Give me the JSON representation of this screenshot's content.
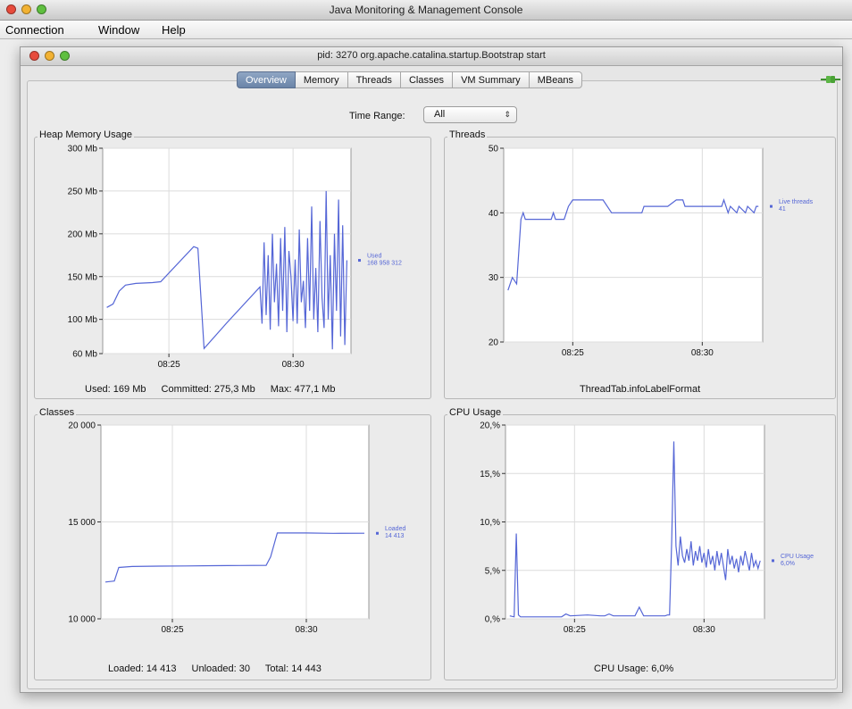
{
  "app": {
    "window_title": "Java Monitoring & Management Console",
    "menu": [
      "Connection",
      "Window",
      "Help"
    ],
    "inner_title": "pid: 3270 org.apache.catalina.startup.Bootstrap start"
  },
  "tabs": [
    "Overview",
    "Memory",
    "Threads",
    "Classes",
    "VM Summary",
    "MBeans"
  ],
  "active_tab": "Overview",
  "time_range": {
    "label": "Time Range:",
    "value": "All"
  },
  "colors": {
    "series": "#5566d6",
    "grid": "#dcdcdc",
    "plot_bg": "#ffffff"
  },
  "icons": {
    "connection": "connected-plug-icon",
    "range_selector": "up-down-arrows-icon"
  },
  "charts": {
    "heap": {
      "title": "Heap Memory Usage",
      "footer": {
        "used": "Used: 169 Mb",
        "committed": "Committed: 275,3 Mb",
        "max": "Max: 477,1 Mb"
      }
    },
    "threads": {
      "title": "Threads",
      "footer": "ThreadTab.infoLabelFormat"
    },
    "classes": {
      "title": "Classes",
      "footer": {
        "loaded": "Loaded: 14 413",
        "unloaded": "Unloaded: 30",
        "total": "Total: 14 443"
      }
    },
    "cpu": {
      "title": "CPU Usage",
      "footer": "CPU Usage: 6,0%"
    }
  },
  "chart_data": [
    {
      "type": "line",
      "title": "Heap Memory Usage",
      "x_ticks": [
        "08:25",
        "08:30"
      ],
      "y_ticks": [
        "300 Mb",
        "250 Mb",
        "200 Mb",
        "150 Mb",
        "100 Mb",
        "60 Mb"
      ],
      "ylim": [
        60,
        300
      ],
      "grid": true,
      "series": [
        {
          "legend_line1": "Used",
          "legend_line2": "168 958 312",
          "x": [
            "08:22:30",
            "08:22:45",
            "08:23:00",
            "08:23:15",
            "08:23:40",
            "08:24:20",
            "08:24:40",
            "08:26:00",
            "08:26:10",
            "08:26:25",
            "08:27:20",
            "08:28:40",
            "08:28:45",
            "08:28:50",
            "08:28:55",
            "08:29:00",
            "08:29:05",
            "08:29:10",
            "08:29:15",
            "08:29:20",
            "08:29:25",
            "08:29:30",
            "08:29:35",
            "08:29:40",
            "08:29:45",
            "08:29:50",
            "08:29:55",
            "08:30:00",
            "08:30:05",
            "08:30:10",
            "08:30:15",
            "08:30:20",
            "08:30:25",
            "08:30:30",
            "08:30:35",
            "08:30:40",
            "08:30:45",
            "08:30:50",
            "08:30:55",
            "08:31:00",
            "08:31:05",
            "08:31:10",
            "08:31:15",
            "08:31:20",
            "08:31:25",
            "08:31:30",
            "08:31:35",
            "08:31:40",
            "08:31:45",
            "08:31:50",
            "08:31:55",
            "08:32:00",
            "08:32:05",
            "08:32:10"
          ],
          "values": [
            114,
            118,
            133,
            140,
            142,
            143,
            144,
            185,
            183,
            66,
            96,
            138,
            95,
            190,
            105,
            175,
            88,
            200,
            120,
            165,
            92,
            195,
            110,
            208,
            85,
            180,
            150,
            98,
            170,
            95,
            205,
            120,
            145,
            90,
            195,
            110,
            232,
            100,
            160,
            85,
            215,
            125,
            90,
            250,
            100,
            175,
            65,
            200,
            110,
            240,
            80,
            210,
            70,
            169
          ]
        }
      ]
    },
    {
      "type": "line",
      "title": "Threads",
      "x_ticks": [
        "08:25",
        "08:30"
      ],
      "y_ticks": [
        "50",
        "40",
        "30",
        "20"
      ],
      "ylim": [
        20,
        50
      ],
      "grid": true,
      "series": [
        {
          "legend_line1": "Live threads",
          "legend_line2": "41",
          "x": [
            "08:22:30",
            "08:22:40",
            "08:22:50",
            "08:23:00",
            "08:23:05",
            "08:23:10",
            "08:23:20",
            "08:24:10",
            "08:24:15",
            "08:24:20",
            "08:24:40",
            "08:24:50",
            "08:25:00",
            "08:26:10",
            "08:26:30",
            "08:27:40",
            "08:27:45",
            "08:28:40",
            "08:29:00",
            "08:29:15",
            "08:29:20",
            "08:30:45",
            "08:30:50",
            "08:31:00",
            "08:31:05",
            "08:31:20",
            "08:31:25",
            "08:31:40",
            "08:31:45",
            "08:32:00",
            "08:32:05",
            "08:32:10"
          ],
          "values": [
            28,
            30,
            29,
            39,
            40,
            39,
            39,
            39,
            40,
            39,
            39,
            41,
            42,
            42,
            40,
            40,
            41,
            41,
            42,
            42,
            41,
            41,
            42,
            40,
            41,
            40,
            41,
            40,
            41,
            40,
            41,
            41
          ]
        }
      ]
    },
    {
      "type": "line",
      "title": "Classes",
      "x_ticks": [
        "08:25",
        "08:30"
      ],
      "y_ticks": [
        "20 000",
        "15 000",
        "10 000"
      ],
      "ylim": [
        10000,
        20000
      ],
      "grid": true,
      "series": [
        {
          "legend_line1": "Loaded",
          "legend_line2": "14 413",
          "x": [
            "08:22:30",
            "08:22:50",
            "08:23:00",
            "08:23:30",
            "08:24:30",
            "08:25:30",
            "08:26:30",
            "08:27:30",
            "08:28:30",
            "08:28:40",
            "08:28:55",
            "08:29:20",
            "08:30:00",
            "08:31:00",
            "08:32:10"
          ],
          "values": [
            11900,
            11950,
            12650,
            12700,
            12720,
            12730,
            12740,
            12750,
            12760,
            13200,
            14430,
            14430,
            14430,
            14410,
            14413
          ]
        }
      ]
    },
    {
      "type": "line",
      "title": "CPU Usage",
      "x_ticks": [
        "08:25",
        "08:30"
      ],
      "y_ticks": [
        "20,%",
        "15,%",
        "10,%",
        "5,%",
        "0,%"
      ],
      "ylim": [
        0,
        20
      ],
      "grid": true,
      "series": [
        {
          "legend_line1": "CPU Usage",
          "legend_line2": "6,0%",
          "x": [
            "08:22:30",
            "08:22:40",
            "08:22:45",
            "08:22:50",
            "08:22:55",
            "08:23:30",
            "08:24:30",
            "08:24:40",
            "08:24:50",
            "08:25:30",
            "08:26:00",
            "08:26:10",
            "08:26:20",
            "08:26:30",
            "08:26:40",
            "08:27:20",
            "08:27:30",
            "08:27:40",
            "08:28:30",
            "08:28:35",
            "08:28:40",
            "08:28:45",
            "08:28:50",
            "08:28:55",
            "08:29:00",
            "08:29:05",
            "08:29:10",
            "08:29:15",
            "08:29:20",
            "08:29:25",
            "08:29:30",
            "08:29:35",
            "08:29:40",
            "08:29:45",
            "08:29:50",
            "08:29:55",
            "08:30:00",
            "08:30:05",
            "08:30:10",
            "08:30:15",
            "08:30:20",
            "08:30:25",
            "08:30:30",
            "08:30:35",
            "08:30:40",
            "08:30:45",
            "08:30:50",
            "08:30:55",
            "08:31:00",
            "08:31:05",
            "08:31:10",
            "08:31:15",
            "08:31:20",
            "08:31:25",
            "08:31:30",
            "08:31:35",
            "08:31:40",
            "08:31:45",
            "08:31:50",
            "08:31:55",
            "08:32:00",
            "08:32:05",
            "08:32:10"
          ],
          "values": [
            0.3,
            0.2,
            8.8,
            0.4,
            0.2,
            0.2,
            0.2,
            0.5,
            0.3,
            0.4,
            0.3,
            0.3,
            0.5,
            0.3,
            0.3,
            0.3,
            1.2,
            0.3,
            0.3,
            0.4,
            0.4,
            8.0,
            18.3,
            7.5,
            5.5,
            8.5,
            6.5,
            5.8,
            7.2,
            6.0,
            8.0,
            5.5,
            7.0,
            6.0,
            7.5,
            5.8,
            6.8,
            5.3,
            7.2,
            5.6,
            6.5,
            5.0,
            7.0,
            5.5,
            6.8,
            5.4,
            4.0,
            7.2,
            5.6,
            6.5,
            5.2,
            6.2,
            4.8,
            6.5,
            5.5,
            7.0,
            6.0,
            5.0,
            6.8,
            5.4,
            6.0,
            5.2,
            6.0
          ]
        }
      ]
    }
  ]
}
